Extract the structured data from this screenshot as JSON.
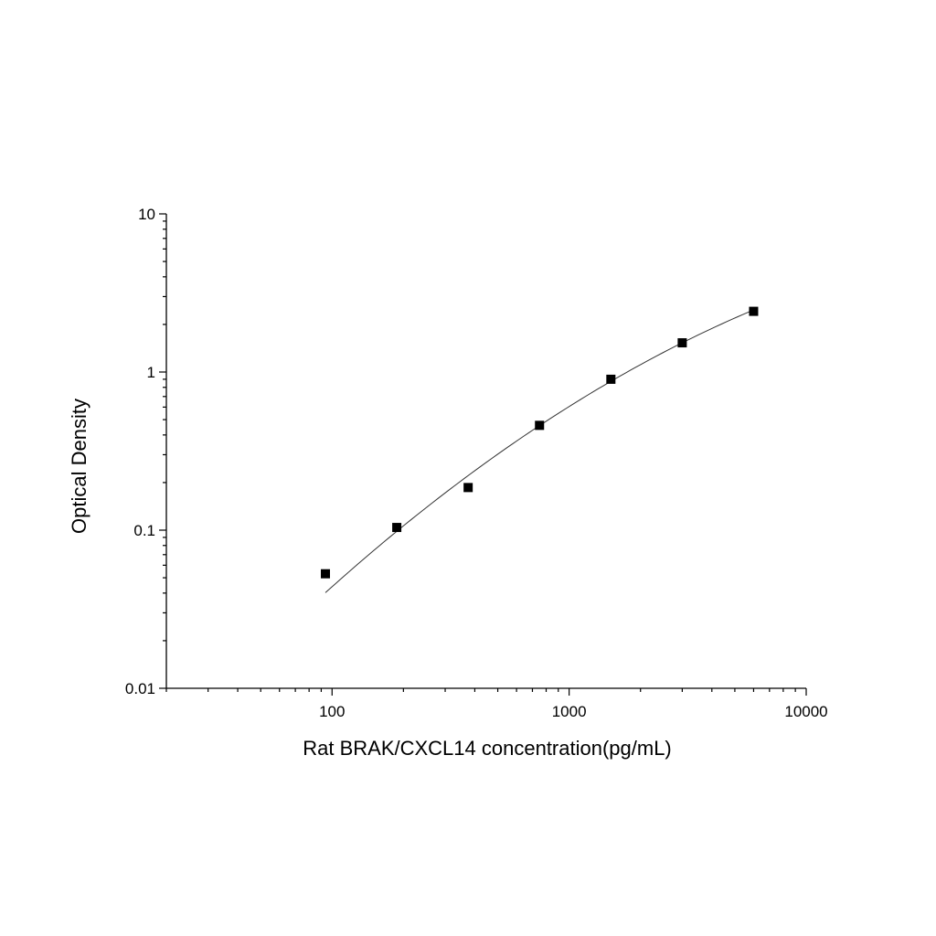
{
  "chart_data": {
    "type": "scatter",
    "title": "",
    "xlabel": "Rat BRAK/CXCL14 concentration(pg/mL)",
    "ylabel": "Optical Density",
    "x_scale": "log",
    "y_scale": "log",
    "xlim": [
      20,
      10000
    ],
    "ylim": [
      0.01,
      10
    ],
    "x_ticks": [
      100,
      1000,
      10000
    ],
    "x_tick_labels": [
      "100",
      "1000",
      "10000"
    ],
    "y_ticks": [
      0.01,
      0.1,
      1,
      10
    ],
    "y_tick_labels": [
      "0.01",
      "0.1",
      "1",
      "10"
    ],
    "grid": false,
    "series": [
      {
        "marker": "square",
        "x": [
          93.75,
          187.5,
          375,
          750,
          1500,
          3000,
          6000
        ],
        "y": [
          0.053,
          0.104,
          0.186,
          0.46,
          0.9,
          1.53,
          2.42
        ]
      }
    ],
    "fit_curve": {
      "x": [
        93.75,
        187.5,
        375,
        750,
        1500,
        3000,
        6000
      ],
      "y": [
        0.04,
        0.1,
        0.22,
        0.45,
        0.88,
        1.55,
        2.45
      ]
    }
  }
}
